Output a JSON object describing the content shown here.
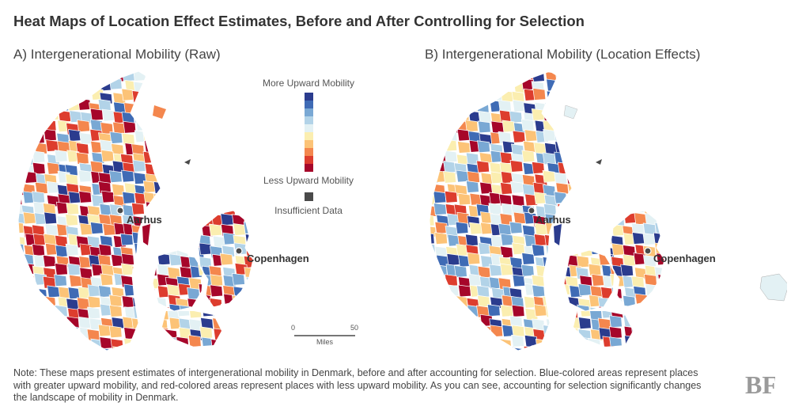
{
  "title": "Heat Maps of Location Effect Estimates, Before and After Controlling for Selection",
  "panels": {
    "a_title": "A) Intergenerational Mobility (Raw)",
    "b_title": "B) Intergenerational Mobility (Location Effects)"
  },
  "cities": {
    "aarhus": "Aarhus",
    "copenhagen": "Copenhagen"
  },
  "legend": {
    "top_label": "More Upward Mobility",
    "bottom_label": "Less Upward Mobility",
    "insufficient_label": "Insufficient Data",
    "colors": [
      "#2b3c8e",
      "#3f6bb5",
      "#79a8d4",
      "#b2d3e8",
      "#e3f1f4",
      "#fbeeb0",
      "#fcc377",
      "#f4874e",
      "#dd3d2e",
      "#a6062a"
    ],
    "insufficient_color": "#4a4a4a"
  },
  "scale": {
    "start": "0",
    "end": "50",
    "unit": "Miles"
  },
  "note": "Note: These maps present estimates of intergenerational mobility in Denmark, before and after accounting for selection. Blue-colored areas represent places with greater upward mobility, and red-colored areas represent places with less upward mobility. As you can see, accounting for selection significantly changes the landscape of mobility in Denmark.",
  "logo": {
    "text": "BF"
  }
}
